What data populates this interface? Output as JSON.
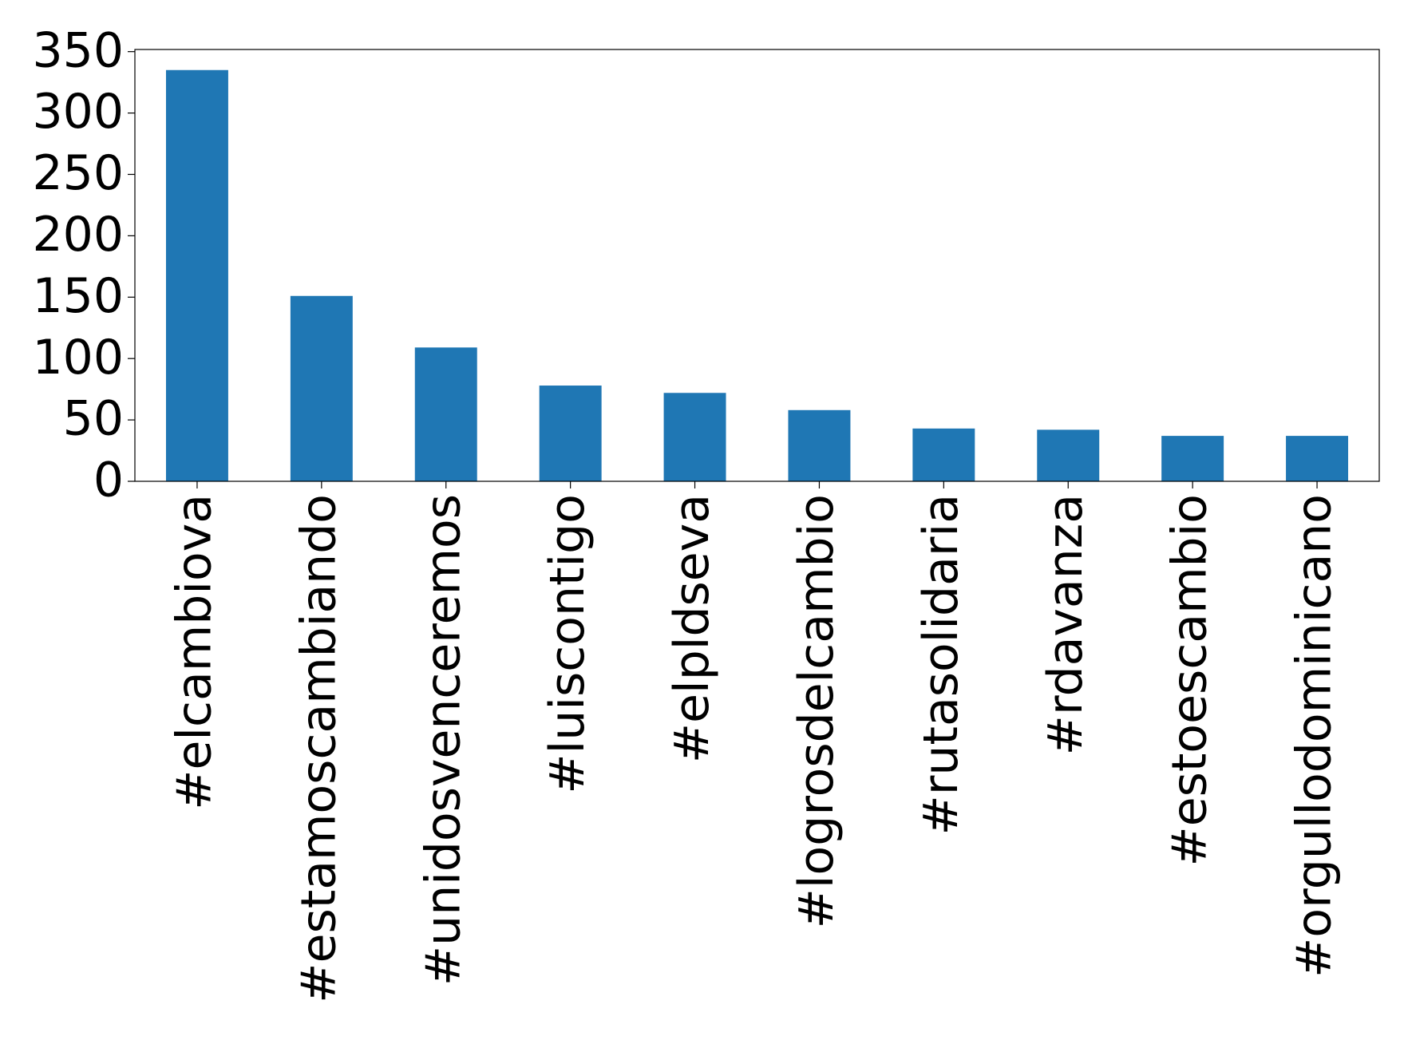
{
  "chart_data": {
    "type": "bar",
    "categories": [
      "#elcambiova",
      "#estamoscambiando",
      "#unidosvenceremos",
      "#luiscontigo",
      "#elpldseva",
      "#logrosdelcambio",
      "#rutasolidaria",
      "#rdavanza",
      "#estoescambio",
      "#orgullodominicano"
    ],
    "values": [
      335,
      151,
      109,
      78,
      72,
      58,
      43,
      42,
      37,
      37
    ],
    "color": "#1f77b4",
    "ylim": [
      0,
      351.75
    ],
    "yticks": [
      0,
      50,
      100,
      150,
      200,
      250,
      300,
      350
    ],
    "grid": false
  }
}
